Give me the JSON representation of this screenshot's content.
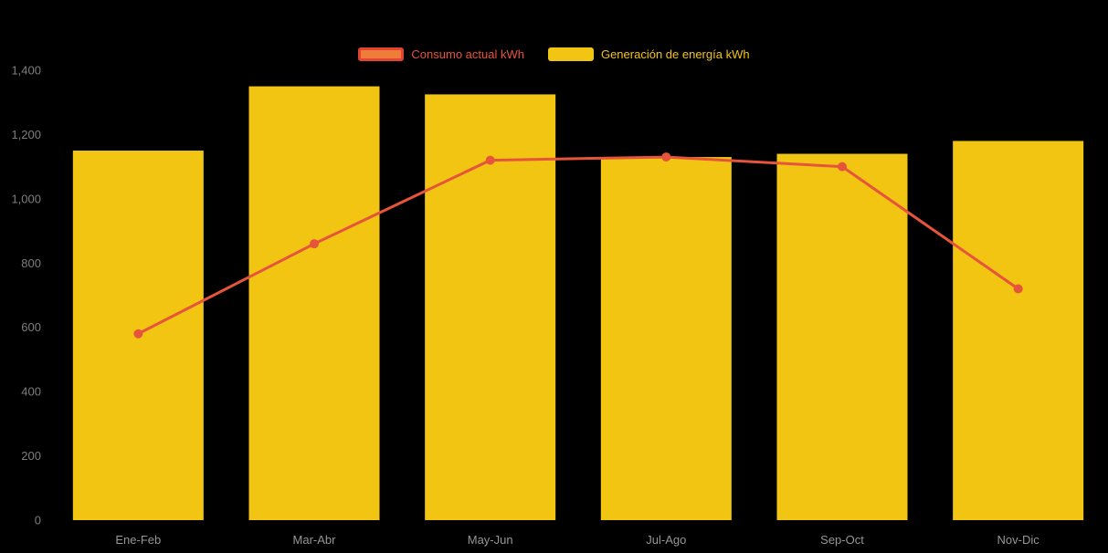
{
  "background_color": "#000000",
  "legend": {
    "items": [
      {
        "label": "Consumo actual kWh",
        "series_type": "line",
        "color": "#E6543C",
        "swatch_fill": "#EF7D3A",
        "swatch_border": "#E2442F"
      },
      {
        "label": "Generación de energía kWh",
        "series_type": "bar",
        "color": "#F2C512",
        "swatch_fill": "#F2C512",
        "swatch_border": "#F2C512"
      }
    ]
  },
  "chart_data": {
    "type": "bar",
    "subtype": "bar-with-line-overlay",
    "title": "",
    "xlabel": "",
    "ylabel": "",
    "categories": [
      "Ene-Feb",
      "Mar-Abr",
      "May-Jun",
      "Jul-Ago",
      "Sep-Oct",
      "Nov-Dic"
    ],
    "series": [
      {
        "name": "Generación de energía kWh",
        "type": "bar",
        "color": "#F2C512",
        "values": [
          1150,
          1350,
          1325,
          1130,
          1140,
          1180
        ]
      },
      {
        "name": "Consumo actual kWh",
        "type": "line",
        "color": "#E6543C",
        "marker_color": "#E6543C",
        "values": [
          580,
          860,
          1120,
          1130,
          1100,
          720
        ]
      }
    ],
    "ylim": [
      0,
      1400
    ],
    "ytick_step": 200,
    "ytick_labels": [
      "0",
      "200",
      "400",
      "600",
      "800",
      "1,000",
      "1,200",
      "1,400"
    ],
    "grid": false,
    "legend_position": "top-center",
    "axis_text_color": "#7D7D7D",
    "category_text_color": "#969696"
  }
}
